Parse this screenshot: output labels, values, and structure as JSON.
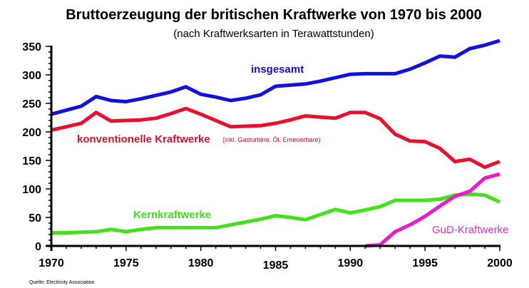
{
  "chart_data": {
    "type": "line",
    "title": "Bruttoerzeugung der britischen Kraftwerke von 1970 bis 2000",
    "subtitle": "(nach Kraftwerksarten in Terawattstunden)",
    "xlabel": "",
    "ylabel": "",
    "xlim": [
      1970,
      2000
    ],
    "ylim": [
      0,
      350
    ],
    "x_ticks": [
      "1970",
      "1975",
      "1980",
      "1985",
      "1990",
      "1995",
      "2000"
    ],
    "y_ticks": [
      "0",
      "50",
      "100",
      "150",
      "200",
      "250",
      "300",
      "350"
    ],
    "grid": false,
    "source": "Quelle: Electricity Association",
    "series": [
      {
        "name": "insgesamt",
        "note": "",
        "color": "#1010e0",
        "x": [
          1970,
          1971,
          1972,
          1973,
          1974,
          1975,
          1976,
          1977,
          1978,
          1979,
          1980,
          1981,
          1982,
          1983,
          1984,
          1985,
          1986,
          1987,
          1988,
          1989,
          1990,
          1991,
          1992,
          1993,
          1994,
          1995,
          1996,
          1997,
          1998,
          1999,
          2000
        ],
        "values": [
          231,
          238,
          245,
          262,
          255,
          253,
          258,
          264,
          270,
          279,
          266,
          261,
          255,
          259,
          265,
          280,
          282,
          284,
          289,
          295,
          301,
          302,
          302,
          302,
          310,
          321,
          333,
          331,
          346,
          352,
          360
        ]
      },
      {
        "name": "konventionelle Kraftwerke",
        "note": "(inkl. Gasturbine. Öl, Erneuerbare)",
        "color": "#e8102c",
        "x": [
          1970,
          1971,
          1972,
          1973,
          1974,
          1975,
          1976,
          1977,
          1978,
          1979,
          1980,
          1981,
          1982,
          1983,
          1984,
          1985,
          1986,
          1987,
          1988,
          1989,
          1990,
          1991,
          1992,
          1993,
          1994,
          1995,
          1996,
          1997,
          1998,
          1999,
          2000
        ],
        "values": [
          203,
          209,
          215,
          234,
          219,
          220,
          221,
          224,
          232,
          241,
          231,
          220,
          209,
          210,
          211,
          215,
          221,
          228,
          226,
          224,
          234,
          234,
          223,
          196,
          184,
          183,
          171,
          148,
          152,
          138,
          148
        ]
      },
      {
        "name": "Kernkraftwerke",
        "note": "",
        "color": "#44e01c",
        "x": [
          1970,
          1971,
          1972,
          1973,
          1974,
          1975,
          1976,
          1977,
          1978,
          1979,
          1980,
          1981,
          1982,
          1983,
          1984,
          1985,
          1986,
          1987,
          1988,
          1989,
          1990,
          1991,
          1992,
          1993,
          1994,
          1995,
          1996,
          1997,
          1998,
          1999,
          2000
        ],
        "values": [
          23,
          23,
          24,
          25,
          29,
          25,
          29,
          32,
          32,
          32,
          32,
          32,
          37,
          42,
          47,
          53,
          50,
          46,
          55,
          64,
          58,
          63,
          69,
          80,
          80,
          80,
          82,
          89,
          91,
          89,
          77
        ]
      },
      {
        "name": "GuD-Kraftwerke",
        "note": "",
        "color": "#e81ccc",
        "x": [
          1991,
          1992,
          1993,
          1994,
          1995,
          1996,
          1997,
          1998,
          1999,
          2000
        ],
        "values": [
          0,
          2,
          25,
          37,
          52,
          70,
          87,
          96,
          119,
          126
        ]
      }
    ]
  }
}
